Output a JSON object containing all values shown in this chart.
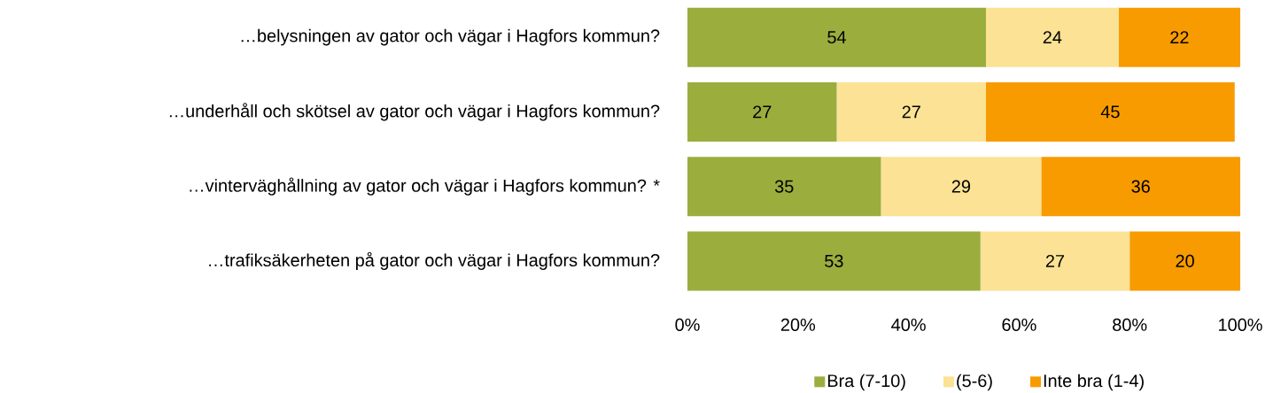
{
  "chart_data": {
    "type": "bar",
    "orientation": "horizontal",
    "stacked": true,
    "data_labels": true,
    "legend": "bottom",
    "grid": false,
    "categories": [
      "…belysningen av gator och vägar i Hagfors kommun?",
      "…underhåll och skötsel av gator och vägar i Hagfors kommun?",
      "…vinterväghållning av gator och vägar i Hagfors kommun? *",
      "…trafiksäkerheten på gator och vägar i Hagfors kommun?"
    ],
    "series": [
      {
        "name": "Bra (7-10)",
        "color": "#9bad3d",
        "values": [
          54,
          27,
          35,
          53
        ]
      },
      {
        "name": "(5-6)",
        "color": "#fbe294",
        "values": [
          24,
          27,
          29,
          27
        ]
      },
      {
        "name": "Inte bra (1-4)",
        "color": "#f89b00",
        "values": [
          22,
          45,
          36,
          20
        ]
      }
    ],
    "xlim": [
      0,
      100
    ],
    "xticks": [
      {
        "value": 0,
        "label": "0%"
      },
      {
        "value": 20,
        "label": "20%"
      },
      {
        "value": 40,
        "label": "40%"
      },
      {
        "value": 60,
        "label": "60%"
      },
      {
        "value": 80,
        "label": "80%"
      },
      {
        "value": 100,
        "label": "100%"
      }
    ]
  }
}
